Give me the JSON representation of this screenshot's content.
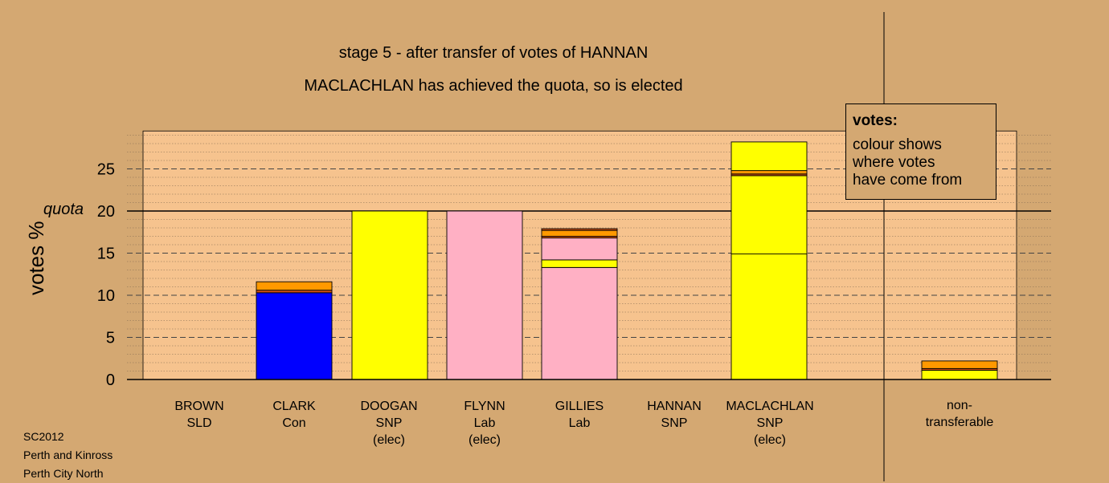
{
  "title_line1": "stage 5 - after transfer of votes of HANNAN",
  "title_line2": "MACLACHLAN has achieved the quota, so is elected",
  "legend": {
    "title": "votes:",
    "body": "colour shows\nwhere votes\nhave come from"
  },
  "footer": {
    "line1": "SC2012",
    "line2": "Perth and Kinross",
    "line3": "Perth City North"
  },
  "colors": {
    "background": "#D4A872",
    "plot": "#F6C38E",
    "SNP": "#FFFF00",
    "Con": "#0000FF",
    "Lab": "#FFB0C4",
    "SLD": "#FF9900",
    "other": "#D05010"
  },
  "candidates": [
    {
      "name": "BROWN",
      "party": "SLD",
      "note": ""
    },
    {
      "name": "CLARK",
      "party": "Con",
      "note": ""
    },
    {
      "name": "DOOGAN",
      "party": "SNP",
      "note": "(elec)"
    },
    {
      "name": "FLYNN",
      "party": "Lab",
      "note": "(elec)"
    },
    {
      "name": "GILLIES",
      "party": "Lab",
      "note": ""
    },
    {
      "name": "HANNAN",
      "party": "SNP",
      "note": ""
    },
    {
      "name": "MACLACHLAN",
      "party": "SNP",
      "note": "(elec)"
    }
  ],
  "nontransferable": {
    "line1": "non-",
    "line2": "transferable"
  },
  "chart_data": {
    "type": "bar",
    "stacked": true,
    "title": "stage 5 - after transfer of votes of HANNAN",
    "subtitle": "MACLACHLAN has achieved the quota, so is elected",
    "ylabel": "votes %",
    "ylim": [
      0,
      30
    ],
    "yticks": [
      0,
      5,
      10,
      15,
      20,
      25
    ],
    "quota": 20,
    "quota_label": "quota",
    "categories": [
      "BROWN SLD",
      "CLARK Con",
      "DOOGAN SNP (elec)",
      "FLYNN Lab (elec)",
      "GILLIES Lab",
      "HANNAN SNP",
      "MACLACHLAN SNP (elec)",
      "non-transferable"
    ],
    "stacks": [
      [],
      [
        {
          "source": "Con",
          "value": 10.3
        },
        {
          "source": "other",
          "value": 0.3
        },
        {
          "source": "SLD",
          "value": 1.0
        }
      ],
      [
        {
          "source": "SNP",
          "value": 20.0
        }
      ],
      [
        {
          "source": "Lab",
          "value": 20.0
        }
      ],
      [
        {
          "source": "Lab",
          "value": 13.3
        },
        {
          "source": "SNP",
          "value": 0.9
        },
        {
          "source": "Lab",
          "value": 2.6
        },
        {
          "source": "other",
          "value": 0.2
        },
        {
          "source": "SLD",
          "value": 0.7
        },
        {
          "source": "other",
          "value": 0.2
        }
      ],
      [],
      [
        {
          "source": "SNP",
          "value": 14.9
        },
        {
          "source": "SNP",
          "value": 9.3
        },
        {
          "source": "other",
          "value": 0.2
        },
        {
          "source": "SLD",
          "value": 0.4
        },
        {
          "source": "SNP",
          "value": 3.4
        }
      ],
      [
        {
          "source": "SNP",
          "value": 1.1
        },
        {
          "source": "other",
          "value": 0.2
        },
        {
          "source": "SLD",
          "value": 0.9
        }
      ]
    ],
    "grid": true,
    "legend": "top-right"
  }
}
